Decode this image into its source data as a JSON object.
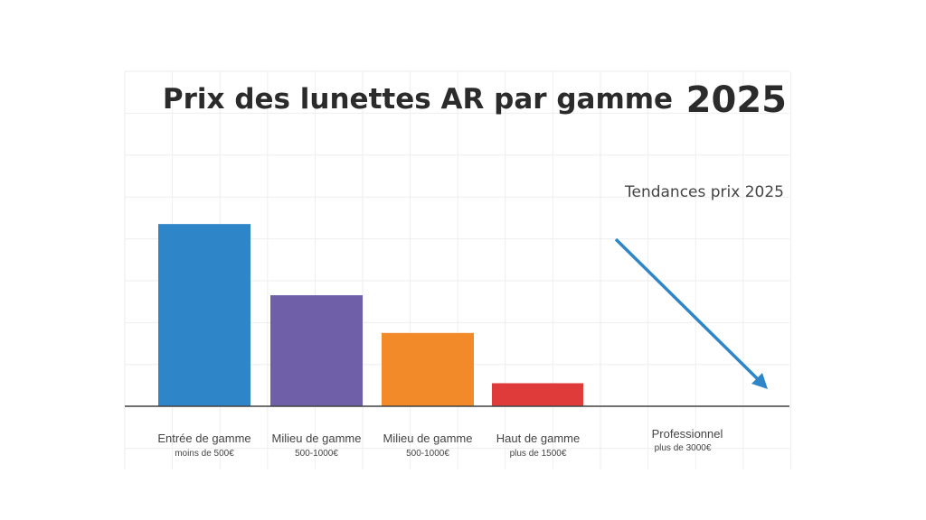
{
  "chart_data": {
    "type": "bar",
    "title": "Prix des lunettes AR par gamme",
    "year_label": "2025",
    "annotation": "Tendances prix 2025",
    "trend_arrow": "down",
    "grid": true,
    "categories": [
      {
        "label": "Entrée de gamme",
        "sublabel": "moins de 500€"
      },
      {
        "label": "Milieu de gamme",
        "sublabel": "500-1000€"
      },
      {
        "label": "Milieu de gamme",
        "sublabel": "500-1000€"
      },
      {
        "label": "Haut de gamme",
        "sublabel": "plus de 1500€"
      },
      {
        "label": "Professionnel",
        "sublabel": "plus de 3000€"
      }
    ],
    "values": [
      4.35,
      2.65,
      1.75,
      0.55,
      null
    ],
    "colors": [
      "#2e86c8",
      "#6e5fa8",
      "#f28a2a",
      "#e03b3b"
    ],
    "arrow_color": "#2e86c8"
  }
}
